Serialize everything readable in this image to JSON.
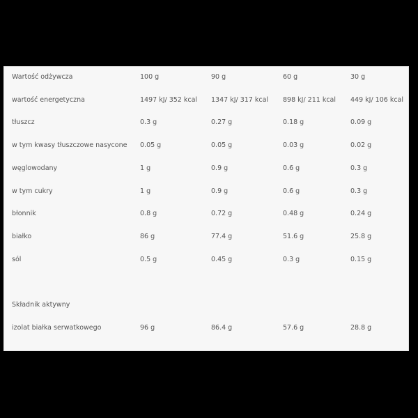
{
  "rows": [
    [
      "Wartość odżywcza",
      "100 g",
      "90 g",
      "60 g",
      "30 g"
    ],
    [
      "wartość energetyczna",
      "1497 kJ/ 352 kcal",
      "1347 kJ/ 317 kcal",
      "898 kJ/ 211 kcal",
      "449 kJ/ 106 kcal"
    ],
    [
      "tłuszcz",
      "0.3 g",
      "0.27 g",
      "0.18 g",
      "0.09 g"
    ],
    [
      "w tym kwasy tłuszczowe nasycone",
      "0.05 g",
      "0.05 g",
      "0.03 g",
      "0.02 g"
    ],
    [
      "węglowodany",
      "1 g",
      "0.9 g",
      "0.6 g",
      "0.3 g"
    ],
    [
      "w tym cukry",
      "1 g",
      "0.9 g",
      "0.6 g",
      "0.3 g"
    ],
    [
      "błonnik",
      "0.8 g",
      "0.72 g",
      "0.48 g",
      "0.24 g"
    ],
    [
      "białko",
      "86 g",
      "77.4 g",
      "51.6 g",
      "25.8 g"
    ],
    [
      "sól",
      "0.5 g",
      "0.45 g",
      "0.3 g",
      "0.15 g"
    ],
    [
      "",
      "",
      "",
      "",
      ""
    ],
    [
      "Składnik aktywny",
      "",
      "",
      "",
      ""
    ],
    [
      "izolat białka serwatkowego",
      "96 g",
      "86.4 g",
      "57.6 g",
      "28.8 g"
    ]
  ]
}
